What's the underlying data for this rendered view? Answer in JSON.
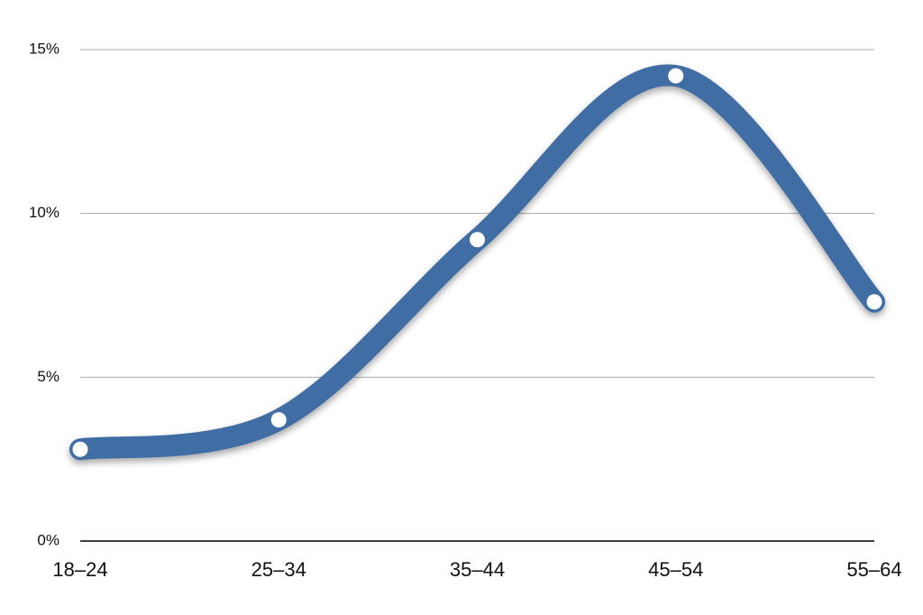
{
  "chart_data": {
    "type": "line",
    "categories": [
      "18–24",
      "25–34",
      "35–44",
      "45–54",
      "55–64"
    ],
    "series": [
      {
        "color": "#406ea4",
        "values": [
          2.8,
          3.7,
          9.2,
          14.2,
          7.3
        ]
      }
    ],
    "ylim": [
      0,
      15
    ],
    "yticks": [
      {
        "value": 0,
        "label": "0%"
      },
      {
        "value": 5,
        "label": "5%"
      },
      {
        "value": 10,
        "label": "10%"
      },
      {
        "value": 15,
        "label": "15%"
      }
    ],
    "grid": true,
    "smooth": true
  }
}
